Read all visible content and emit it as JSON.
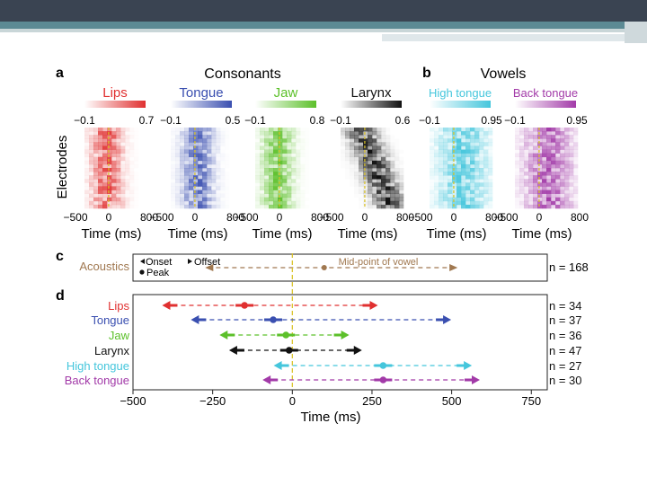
{
  "header": {
    "accent": "#3a4452",
    "stripe": "#5c8a94"
  },
  "panel_a": {
    "letter": "a",
    "title": "Consonants",
    "ylabel": "Electrodes",
    "columns": [
      {
        "name": "Lips",
        "color": "#e03030",
        "min": "−0.1",
        "max": "0.7",
        "xticks": [
          "−500",
          "0",
          "800"
        ],
        "xlabel": "Time (ms)"
      },
      {
        "name": "Tongue",
        "color": "#3a4fb0",
        "min": "−0.1",
        "max": "0.5",
        "xticks": [
          "−500",
          "0",
          "800"
        ],
        "xlabel": "Time (ms)"
      },
      {
        "name": "Jaw",
        "color": "#5cc02a",
        "min": "−0.1",
        "max": "0.8",
        "xticks": [
          "−500",
          "0",
          "800"
        ],
        "xlabel": "Time (ms)"
      },
      {
        "name": "Larynx",
        "color": "#111111",
        "min": "−0.1",
        "max": "0.6",
        "xticks": [
          "−500",
          "0",
          "800"
        ],
        "xlabel": "Time (ms)"
      }
    ]
  },
  "panel_b": {
    "letter": "b",
    "title": "Vowels",
    "columns": [
      {
        "name": "High tongue",
        "color": "#45c6dc",
        "min": "−0.1",
        "max": "0.95",
        "xticks": [
          "−500",
          "0",
          "800"
        ],
        "xlabel": "Time (ms)"
      },
      {
        "name": "Back tongue",
        "color": "#a23aa8",
        "min": "−0.1",
        "max": "0.95",
        "xticks": [
          "−500",
          "0",
          "800"
        ],
        "xlabel": "Time (ms)"
      }
    ]
  },
  "panel_c": {
    "letter": "c",
    "label": "Acoustics",
    "legend_onset": "Onset",
    "legend_offset": "Offset",
    "legend_peak": "Peak",
    "midpoint_label": "Mid-point of vowel",
    "n": "n = 168"
  },
  "chart_data": {
    "type": "errorbar",
    "title": "",
    "xlabel": "Time (ms)",
    "xlim": [
      -500,
      800
    ],
    "xticks": [
      -500,
      -250,
      0,
      250,
      500,
      750
    ],
    "xtick_labels": [
      "−500",
      "−250",
      "0",
      "250",
      "500",
      "750"
    ],
    "acoustics": {
      "onset": -265,
      "peak": 100,
      "offset": 510,
      "color": "#a07850"
    },
    "series": [
      {
        "name": "Lips",
        "color": "#e03030",
        "onset": -400,
        "peak": -150,
        "offset": 260,
        "n": "n = 34"
      },
      {
        "name": "Tongue",
        "color": "#3a4fb0",
        "onset": -310,
        "peak": -60,
        "offset": 490,
        "n": "n = 37"
      },
      {
        "name": "Jaw",
        "color": "#5cc02a",
        "onset": -220,
        "peak": -20,
        "offset": 170,
        "n": "n = 36"
      },
      {
        "name": "Larynx",
        "color": "#111111",
        "onset": -190,
        "peak": -10,
        "offset": 210,
        "n": "n = 47"
      },
      {
        "name": "High tongue",
        "color": "#45c6dc",
        "onset": -50,
        "peak": 285,
        "offset": 555,
        "n": "n = 27"
      },
      {
        "name": "Back tongue",
        "color": "#a23aa8",
        "onset": -85,
        "peak": 285,
        "offset": 580,
        "n": "n = 30"
      }
    ]
  }
}
